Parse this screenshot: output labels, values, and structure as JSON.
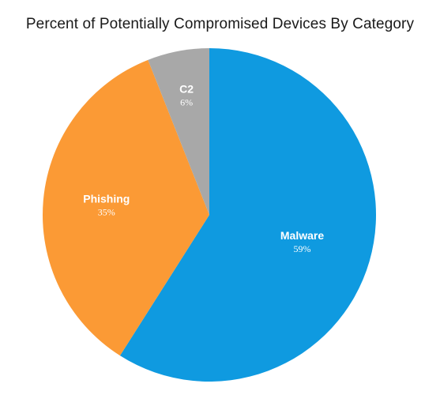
{
  "chart_data": {
    "type": "pie",
    "title": "Percent of Potentially Compromised Devices By Category",
    "slices": [
      {
        "name": "Malware",
        "label": "59%",
        "value": 59,
        "color": "#0f9ae0"
      },
      {
        "name": "Phishing",
        "label": "35%",
        "value": 35,
        "color": "#fb9a35"
      },
      {
        "name": "C2",
        "label": "6%",
        "value": 6,
        "color": "#a8a8a8"
      }
    ],
    "start_angle_deg": 0,
    "direction": "clockwise",
    "legend": "none",
    "data_labels": "inside"
  }
}
